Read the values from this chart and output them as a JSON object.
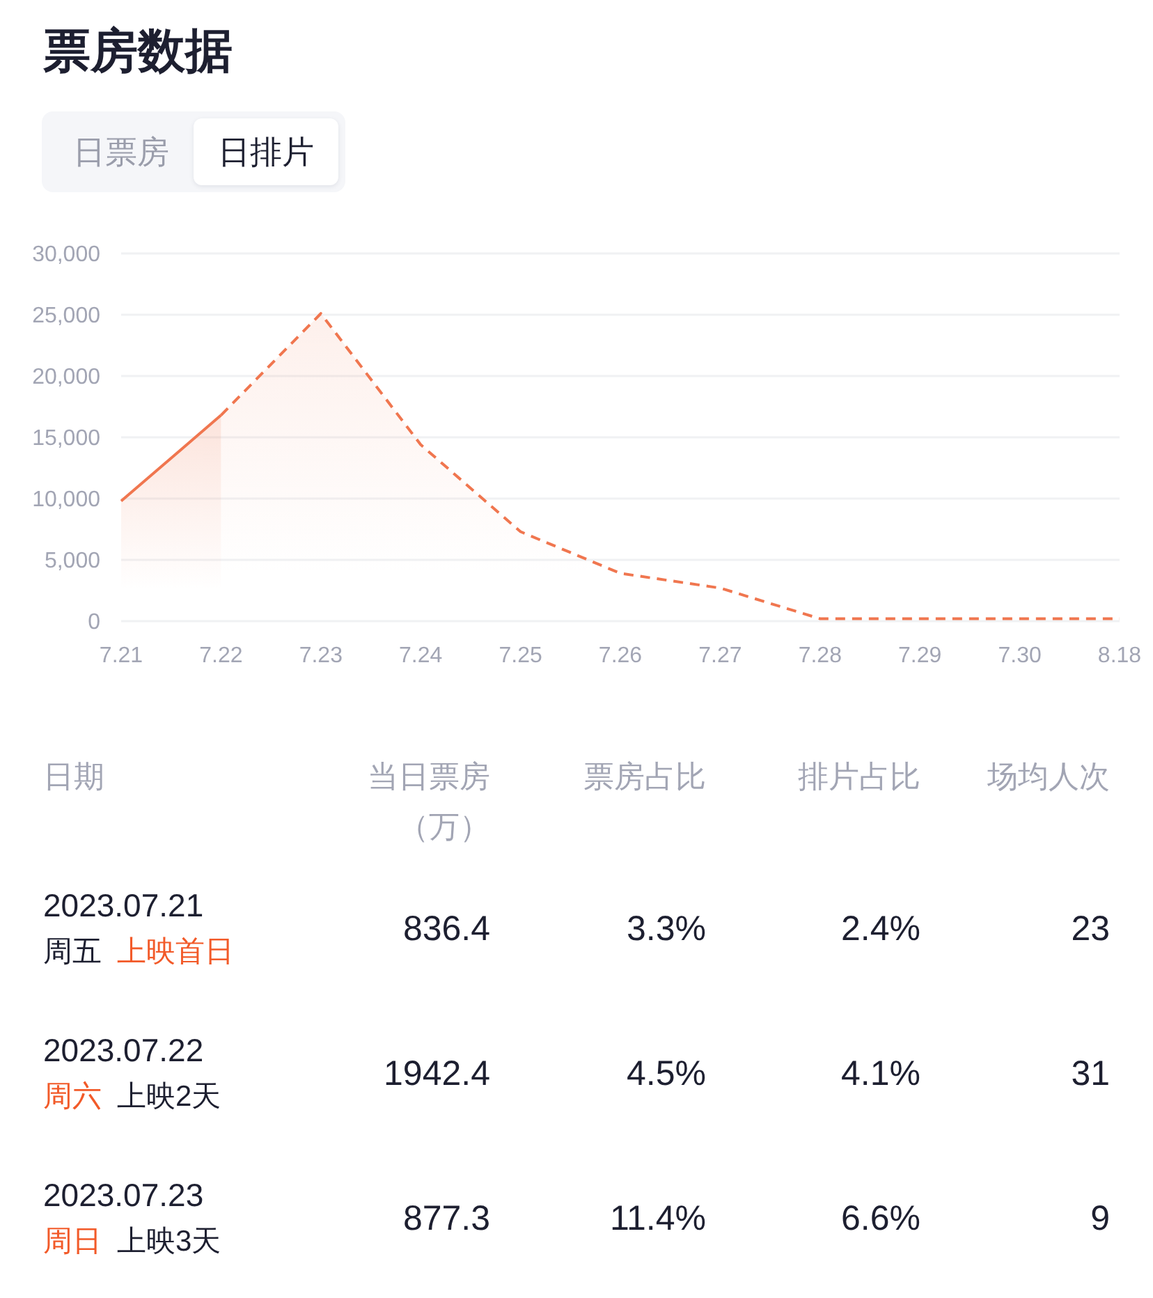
{
  "chart_data": [
    {
      "type": "area",
      "title": "票房数据",
      "annotations": [
        "日票房",
        "日排片"
      ],
      "categories": [
        "7.21",
        "7.22",
        "7.23",
        "7.24",
        "7.25",
        "7.26",
        "7.27",
        "7.28",
        "7.29",
        "7.30",
        "8.18"
      ],
      "series": [
        {
          "color": "#f0764f",
          "line_style": "solid",
          "values": [
            9800,
            16800,
            null,
            null,
            null,
            null,
            null,
            null,
            null,
            null,
            null
          ]
        },
        {
          "color": "#f0764f",
          "line_style": "dashed",
          "values": [
            null,
            16800,
            25100,
            14400,
            7300,
            3900,
            2700,
            200,
            200,
            200,
            200
          ]
        }
      ],
      "ylim": [
        0,
        30000
      ],
      "yticks": [
        0,
        {
          "value": 5000,
          "label": "5,000"
        },
        {
          "value": 10000,
          "label": "10,000"
        },
        {
          "value": 15000,
          "label": "15,000"
        },
        {
          "value": 20000,
          "label": "20,000"
        },
        {
          "value": 25000,
          "label": "25,000"
        },
        {
          "value": 30000,
          "label": "30,000"
        }
      ],
      "grid": "y"
    },
    {
      "type": "other",
      "annotations": [
        "日期",
        "当日票房（万）",
        "票房占比",
        "排片占比",
        "场均人次",
        "2023.07.21",
        "周五",
        "上映首日",
        "836.4",
        "3.3%",
        "2.4%",
        "23",
        "2023.07.22",
        "周六",
        "上映2天",
        "1942.4",
        "4.5%",
        "4.1%",
        "31",
        "2023.07.23",
        "周日",
        "上映3天",
        "877.3",
        "11.4%",
        "6.6%",
        "9"
      ]
    }
  ]
}
